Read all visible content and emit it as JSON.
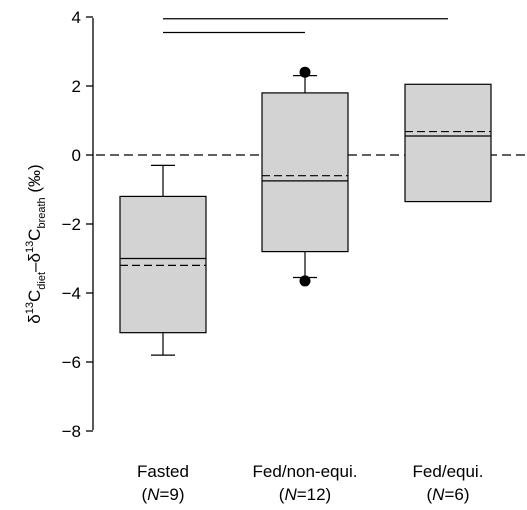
{
  "chart_data": {
    "type": "box",
    "ylabel": "δ13Cdiet–δ13Cbreath (‰)",
    "ylabel_parts": {
      "d1": "δ",
      "sup1": "13",
      "c1": "C",
      "sub1": "diet",
      "dash": "–δ",
      "sup2": "13",
      "c2": "C",
      "sub2": "breath",
      "unit": " (‰)"
    },
    "ylim": [
      -8.3,
      4.3
    ],
    "yticks": [
      4,
      2,
      0,
      -2,
      -4,
      -6,
      -8
    ],
    "ytick_labels": [
      "4",
      "2",
      "0",
      "−2",
      "−4",
      "−6",
      "−8"
    ],
    "reference_line_y": 0,
    "box_fill": "#d3d3d3",
    "categories": [
      {
        "name": "Fasted",
        "n_prefix": "(",
        "n_symbol": "N",
        "n_rest": "=9)"
      },
      {
        "name": "Fed/non-equi.",
        "n_prefix": "(",
        "n_symbol": "N",
        "n_rest": "=12)"
      },
      {
        "name": "Fed/equi.",
        "n_prefix": "(",
        "n_symbol": "N",
        "n_rest": "=6)"
      }
    ],
    "boxes": [
      {
        "q1": -5.15,
        "q3": -1.2,
        "median": -3.0,
        "mean": -3.2,
        "whisker_low": -5.8,
        "whisker_high": -0.3,
        "outliers": []
      },
      {
        "q1": -2.8,
        "q3": 1.8,
        "median": -0.75,
        "mean": -0.6,
        "whisker_low": -3.55,
        "whisker_high": 2.3,
        "outliers": [
          2.4,
          -3.65
        ]
      },
      {
        "q1": -1.35,
        "q3": 2.05,
        "median": 0.55,
        "mean": 0.68,
        "whisker_low": null,
        "whisker_high": null,
        "outliers": []
      }
    ],
    "significance_bars": [
      {
        "from": 0,
        "to": 2,
        "y": 3.95
      },
      {
        "from": 0,
        "to": 1,
        "y": 3.55
      }
    ],
    "grid": false
  }
}
